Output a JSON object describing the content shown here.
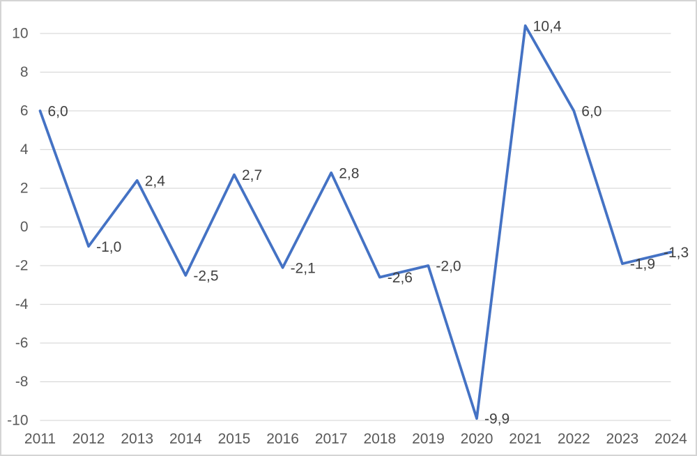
{
  "chart_data": {
    "type": "line",
    "title": "",
    "xlabel": "",
    "ylabel": "",
    "categories": [
      "2011",
      "2012",
      "2013",
      "2014",
      "2015",
      "2016",
      "2017",
      "2018",
      "2019",
      "2020",
      "2021",
      "2022",
      "2023",
      "2024"
    ],
    "series": [
      {
        "name": "series-1",
        "values": [
          6.0,
          -1.0,
          2.4,
          -2.5,
          2.7,
          -2.1,
          2.8,
          -2.6,
          -2.0,
          -9.9,
          10.4,
          6.0,
          -1.9,
          -1.3
        ],
        "data_labels": [
          "6,0",
          "-1,0",
          "2,4",
          "-2,5",
          "2,7",
          "-2,1",
          "2,8",
          "-2,6",
          "-2,0",
          "-9,9",
          "10,4",
          "6,0",
          "-1,9",
          "-1,3"
        ],
        "color": "#4472C4"
      }
    ],
    "y_ticks": [
      10,
      8,
      6,
      4,
      2,
      0,
      -2,
      -4,
      -6,
      -8,
      -10
    ],
    "y_tick_labels": [
      "10",
      "8",
      "6",
      "4",
      "2",
      "0",
      "-2",
      "-4",
      "-6",
      "-8",
      "-10"
    ],
    "ylim": [
      -10,
      10
    ],
    "grid": "horizontal-only",
    "legend": "none",
    "colors": {
      "line": "#4472C4",
      "gridline": "#D9D9D9",
      "axis_tick_label": "#595959",
      "data_label": "#404040",
      "background": "#FFFFFF",
      "frame_border": "#D4D4D4"
    }
  }
}
